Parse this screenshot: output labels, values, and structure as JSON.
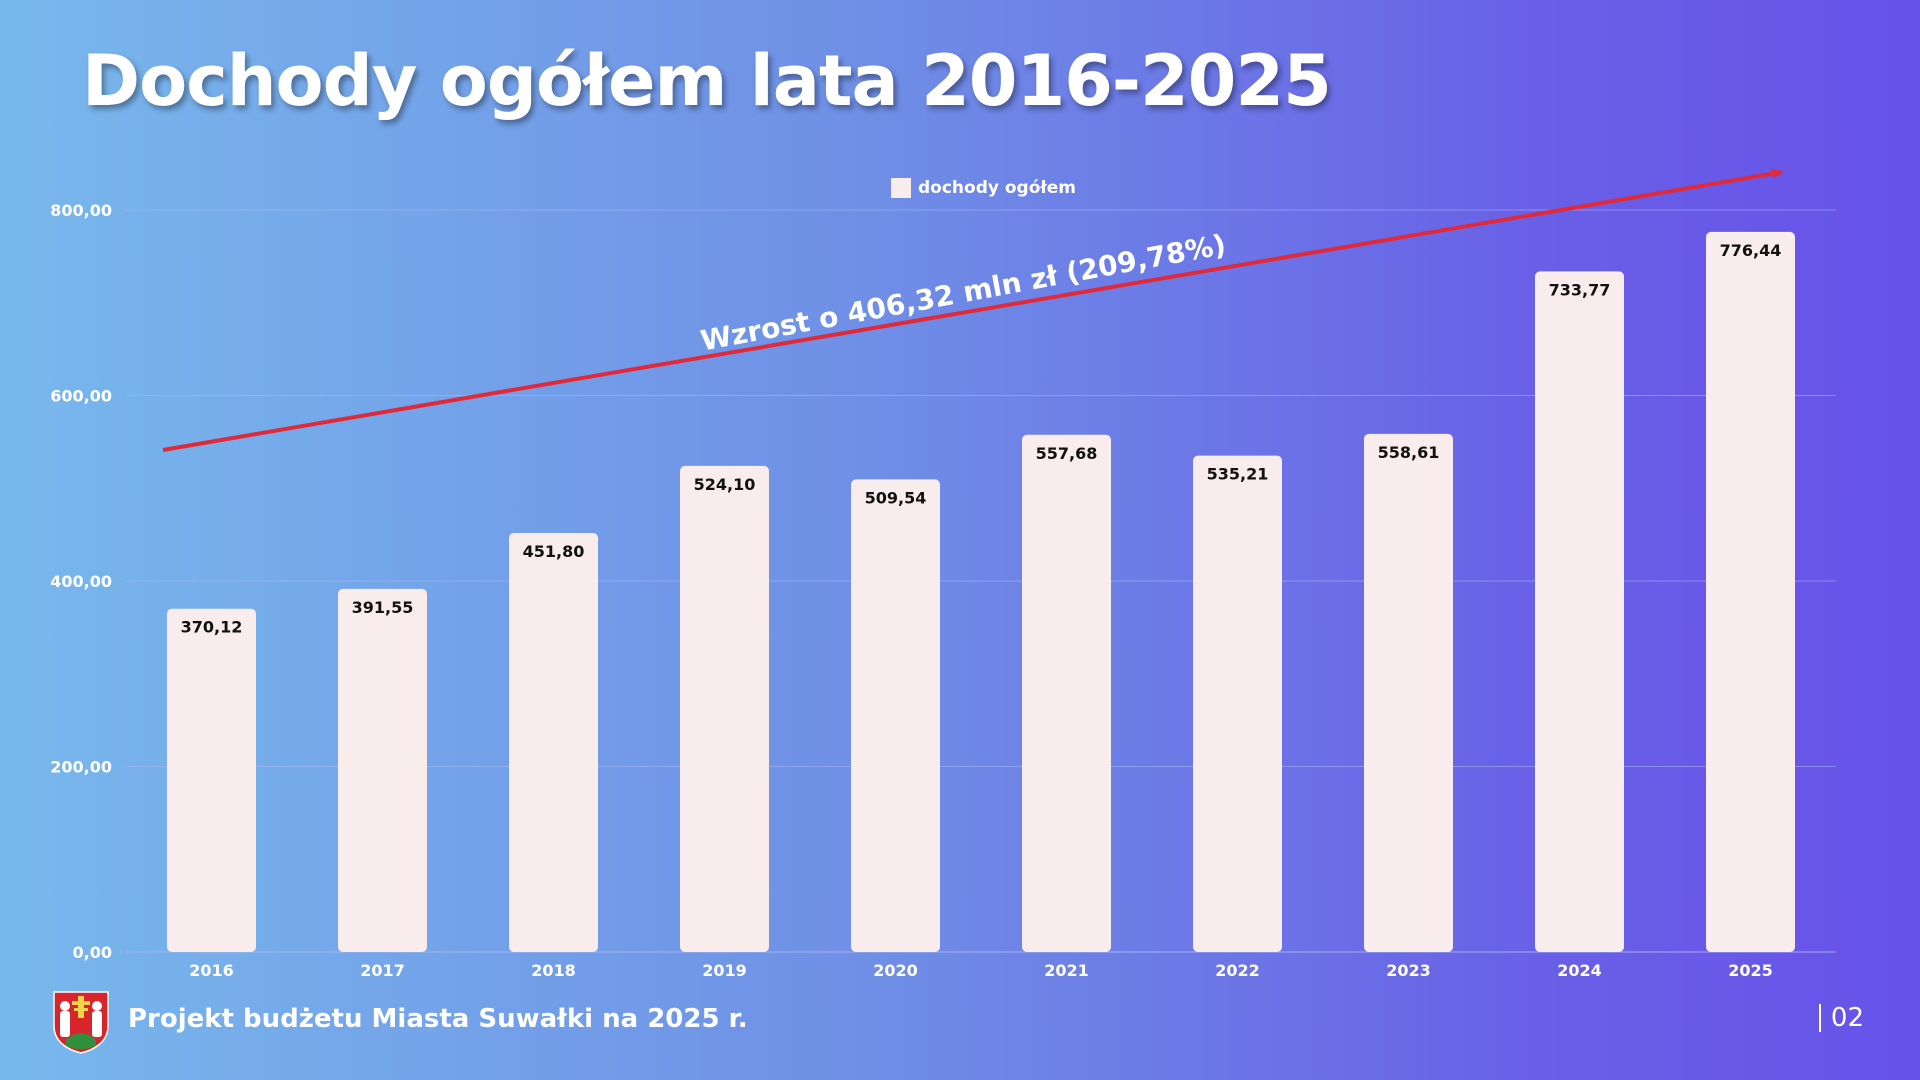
{
  "slide": {
    "title": "Dochody ogółem lata 2016-2025",
    "footer_text": "Projekt budżetu Miasta Suwałki na 2025 r.",
    "page_number": "02"
  },
  "chart_data": {
    "type": "bar",
    "categories": [
      "2016",
      "2017",
      "2018",
      "2019",
      "2020",
      "2021",
      "2022",
      "2023",
      "2024",
      "2025"
    ],
    "series": [
      {
        "name": "dochody ogółem",
        "values": [
          370.12,
          391.55,
          451.8,
          524.1,
          509.54,
          557.68,
          535.21,
          558.61,
          733.77,
          776.44
        ],
        "labels": [
          "370,12",
          "391,55",
          "451,80",
          "524,10",
          "509,54",
          "557,68",
          "535,21",
          "558,61",
          "733,77",
          "776,44"
        ]
      }
    ],
    "ylim": [
      0,
      800
    ],
    "y_ticks": [
      0,
      200,
      400,
      600,
      800
    ],
    "y_tick_labels": [
      "0,00",
      "200,00",
      "400,00",
      "600,00",
      "800,00"
    ],
    "legend_position": "top-center",
    "grid": true,
    "annotation": "Wzrost o 406,32 mln zł (209,78%)",
    "colors": {
      "bar": "#f8ecec",
      "arrow": "#e02a3a",
      "grid": "#a9b8f0"
    }
  }
}
